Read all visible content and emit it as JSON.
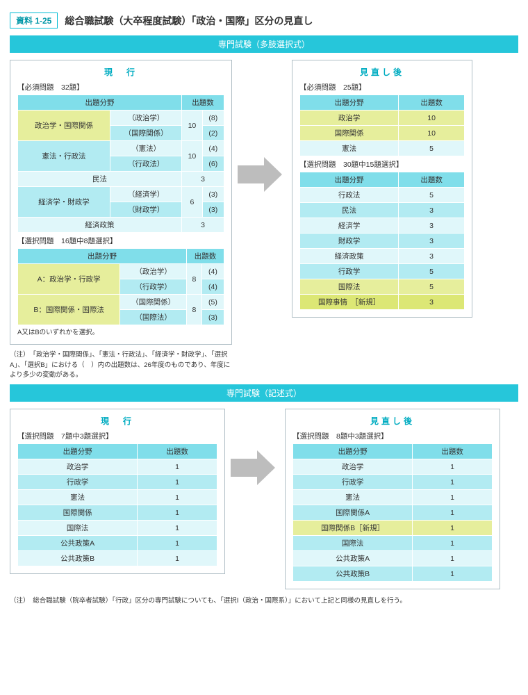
{
  "badge": "資料 1-25",
  "title": "総合職試験（大卒程度試験）「政治・国際」区分の見直し",
  "section1": {
    "bar": "専門試験（多肢選択式）",
    "left": {
      "title": "現　行",
      "req_label": "【必須問題　32題】",
      "h_field": "出題分野",
      "h_count": "出題数",
      "rows": [
        {
          "group": "政治学・国際関係",
          "sub": "（政治学）",
          "g_count": "10",
          "s_count": "(8)"
        },
        {
          "sub": "（国際関係）",
          "s_count": "(2)"
        },
        {
          "group": "憲法・行政法",
          "sub": "（憲法）",
          "g_count": "10",
          "s_count": "(4)"
        },
        {
          "sub": "（行政法）",
          "s_count": "(6)"
        },
        {
          "single": "民法",
          "count": "3"
        },
        {
          "group": "経済学・財政学",
          "sub": "（経済学）",
          "g_count": "6",
          "s_count": "(3)"
        },
        {
          "sub": "（財政学）",
          "s_count": "(3)"
        },
        {
          "single": "経済政策",
          "count": "3"
        }
      ],
      "opt_label": "【選択問題　16題中8題選択】",
      "opt_rows": [
        {
          "group": "A：政治学・行政学",
          "sub": "（政治学）",
          "g_count": "8",
          "s_count": "(4)"
        },
        {
          "sub": "（行政学）",
          "s_count": "(4)"
        },
        {
          "group": "B：国際関係・国際法",
          "sub": "（国際関係）",
          "g_count": "8",
          "s_count": "(5)"
        },
        {
          "sub": "（国際法）",
          "s_count": "(3)"
        }
      ],
      "note": "A又はBのいずれかを選択。"
    },
    "right": {
      "title": "見直し後",
      "req_label": "【必須問題　25題】",
      "h_field": "出題分野",
      "h_count": "出題数",
      "req_rows": [
        {
          "field": "政治学",
          "count": "10",
          "hl": true
        },
        {
          "field": "国際関係",
          "count": "10",
          "hl": true
        },
        {
          "field": "憲法",
          "count": "5"
        }
      ],
      "opt_label": "【選択問題　30題中15題選択】",
      "opt_rows": [
        {
          "field": "行政法",
          "count": "5"
        },
        {
          "field": "民法",
          "count": "3"
        },
        {
          "field": "経済学",
          "count": "3"
        },
        {
          "field": "財政学",
          "count": "3"
        },
        {
          "field": "経済政策",
          "count": "3"
        },
        {
          "field": "行政学",
          "count": "5"
        },
        {
          "field": "国際法",
          "count": "5",
          "hl": true
        },
        {
          "field": "国際事情　［新規］",
          "count": "3",
          "hl2": true
        }
      ]
    },
    "footnote": "（注）　「政治学・国際関係」、「憲法・行政法」、「経済学・財政学」、「選択A」、「選択B」における（　）内の出題数は、26年度のものであり、年度により多少の変動がある。"
  },
  "section2": {
    "bar": "専門試験（記述式）",
    "left": {
      "title": "現　行",
      "label": "【選択問題　7題中3題選択】",
      "h_field": "出題分野",
      "h_count": "出題数",
      "rows": [
        {
          "field": "政治学",
          "count": "1"
        },
        {
          "field": "行政学",
          "count": "1"
        },
        {
          "field": "憲法",
          "count": "1"
        },
        {
          "field": "国際関係",
          "count": "1"
        },
        {
          "field": "国際法",
          "count": "1"
        },
        {
          "field": "公共政策A",
          "count": "1"
        },
        {
          "field": "公共政策B",
          "count": "1"
        }
      ]
    },
    "right": {
      "title": "見直し後",
      "label": "【選択問題　8題中3題選択】",
      "h_field": "出題分野",
      "h_count": "出題数",
      "rows": [
        {
          "field": "政治学",
          "count": "1"
        },
        {
          "field": "行政学",
          "count": "1"
        },
        {
          "field": "憲法",
          "count": "1"
        },
        {
          "field": "国際関係A",
          "count": "1"
        },
        {
          "field": "国際関係B［新規］",
          "count": "1",
          "hl": true
        },
        {
          "field": "国際法",
          "count": "1"
        },
        {
          "field": "公共政策A",
          "count": "1"
        },
        {
          "field": "公共政策B",
          "count": "1"
        }
      ]
    },
    "footnote": "（注）　総合職試験（院卒者試験）「行政」区分の専門試験についても、「選択Ⅰ（政治・国際系）」において上記と同様の見直しを行う。"
  },
  "colors": {
    "teal_bar": "#26c6da",
    "th": "#80deea",
    "row_a": "#e0f7fa",
    "row_b": "#b2ebf2",
    "hl": "#e6ee9c",
    "hl2": "#dce775",
    "arrow": "#bdbdbd"
  }
}
